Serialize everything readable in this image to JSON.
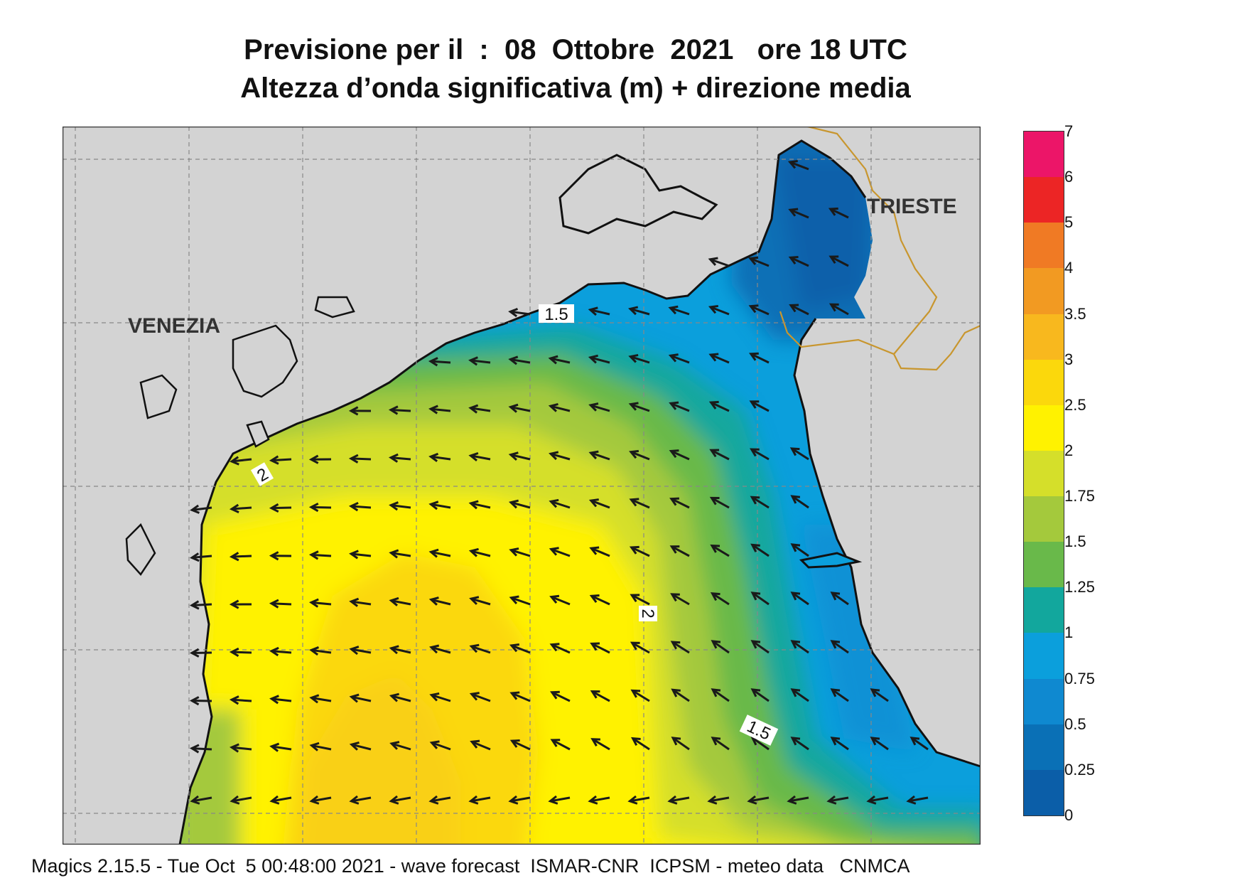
{
  "title_line1": "Previsione per il  :  08  Ottobre  2021   ore 18 UTC",
  "title_line2": "Altezza d’onda significativa (m) + direzione media",
  "footer": "Magics 2.15.5 - Tue Oct  5 00:48:00 2021 - wave forecast  ISMAR-CNR  ICPSM - meteo data   CNMCA",
  "cities": [
    {
      "name": "VENEZIA"
    },
    {
      "name": "TRIESTE"
    }
  ],
  "contour_labels": [
    "1.5",
    "2",
    "2",
    "1.5"
  ],
  "colors": {
    "land": "#d3d3d3",
    "border": "#c8962e",
    "arrow": "#1a1a1a"
  },
  "legend": {
    "labels": [
      "7",
      "6",
      "5",
      "4",
      "3.5",
      "3",
      "2.5",
      "2",
      "1.75",
      "1.5",
      "1.25",
      "1",
      "0.75",
      "0.5",
      "0.25",
      "0"
    ],
    "colors": [
      "#ec1568",
      "#ec2525",
      "#f07a24",
      "#f29a22",
      "#f8b81e",
      "#fbd80c",
      "#fff200",
      "#d5df2a",
      "#a4c93c",
      "#69b94a",
      "#12a79d",
      "#0b9fdc",
      "#0f89d0",
      "#0a70b6",
      "#0b5ea8"
    ]
  },
  "wave_field": {
    "variable": "significant wave height (m)",
    "direction": "mean wave direction, generally toward south-west / west",
    "max_region": "3 - 3.5 m in the central southern basin",
    "min_region": "0 - 0.5 m in the Gulf of Trieste"
  }
}
